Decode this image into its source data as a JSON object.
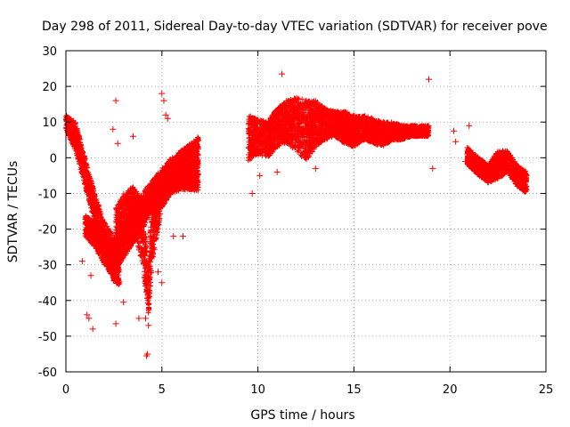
{
  "chart_data": {
    "type": "scatter",
    "title": "Day 298 of 2011, Sidereal Day-to-day VTEC variation (SDTVAR) for receiver pove",
    "xlabel": "GPS time / hours",
    "ylabel": "SDTVAR / TECUs",
    "xlim": [
      0,
      25
    ],
    "ylim": [
      -60,
      30
    ],
    "xticks": [
      0,
      5,
      10,
      15,
      20,
      25
    ],
    "xtick_labels": [
      "0",
      "5",
      "10",
      "15",
      "20",
      "25"
    ],
    "yticks": [
      -60,
      -50,
      -40,
      -30,
      -20,
      -10,
      0,
      10,
      20,
      30
    ],
    "ytick_labels": [
      "-60",
      "-50",
      "-40",
      "-30",
      "-20",
      "-10",
      "0",
      "10",
      "20",
      "30"
    ],
    "grid": true,
    "marker": "+",
    "series": [
      {
        "name": "pove",
        "color": "#ff0000",
        "bands": [
          {
            "x": [
              0.0,
              0.5,
              1.0,
              1.5,
              2.0,
              2.5,
              2.8
            ],
            "lo": [
              8,
              2,
              -8,
              -18,
              -28,
              -35,
              -36
            ],
            "hi": [
              12,
              10,
              0,
              -10,
              -18,
              -22,
              -24
            ]
          },
          {
            "x": [
              1.0,
              1.5,
              2.0,
              2.5,
              3.0,
              3.5,
              4.0,
              4.5,
              5.0,
              5.5,
              6.0,
              6.5,
              6.9
            ],
            "lo": [
              -22,
              -25,
              -30,
              -34,
              -28,
              -24,
              -20,
              -14,
              -12,
              -10,
              -8,
              -9,
              -10
            ],
            "hi": [
              -16,
              -18,
              -20,
              -24,
              -18,
              -14,
              -10,
              -6,
              -3,
              0,
              2,
              4,
              6
            ]
          },
          {
            "x": [
              2.6,
              3.0,
              3.5,
              4.0,
              4.3,
              4.5,
              5.0,
              5.5,
              6.0,
              6.5,
              6.9
            ],
            "lo": [
              -30,
              -22,
              -20,
              -30,
              -44,
              -30,
              -14,
              -10,
              -9,
              -9,
              -9
            ],
            "hi": [
              -14,
              -10,
              -8,
              -12,
              -30,
              -10,
              -4,
              -1,
              2,
              4,
              5
            ]
          },
          {
            "x": [
              9.5,
              10.0,
              10.5,
              11.0,
              11.5,
              12.0,
              12.5,
              13.0,
              13.5,
              14.0,
              14.5,
              15.0,
              15.5,
              16.0,
              16.5,
              17.0,
              17.5,
              18.0,
              18.5,
              18.9
            ],
            "lo": [
              -1,
              1,
              0,
              3,
              4,
              2,
              -1,
              3,
              5,
              6,
              4,
              3,
              5,
              4,
              3,
              5,
              5,
              6,
              6,
              6
            ],
            "hi": [
              12,
              11,
              10,
              14,
              16,
              17,
              16,
              16,
              14,
              13,
              13,
              12,
              12,
              11,
              10,
              10,
              9,
              9,
              9,
              9
            ]
          },
          {
            "x": [
              20.9,
              21.5,
              22.0,
              22.5,
              23.0,
              23.5,
              24.0
            ],
            "lo": [
              -2,
              -5,
              -7,
              -6,
              -4,
              -8,
              -10
            ],
            "hi": [
              3,
              0,
              -2,
              2,
              2,
              -2,
              -4
            ]
          }
        ],
        "outliers": [
          {
            "x": 2.45,
            "y": 8
          },
          {
            "x": 2.6,
            "y": 16
          },
          {
            "x": 2.7,
            "y": 4
          },
          {
            "x": 3.5,
            "y": 6
          },
          {
            "x": 5.0,
            "y": 18
          },
          {
            "x": 5.1,
            "y": 16
          },
          {
            "x": 5.2,
            "y": 12
          },
          {
            "x": 5.3,
            "y": 11
          },
          {
            "x": 4.25,
            "y": -55
          },
          {
            "x": 4.2,
            "y": -55.5
          },
          {
            "x": 4.3,
            "y": -47
          },
          {
            "x": 4.15,
            "y": -45
          },
          {
            "x": 1.1,
            "y": -44
          },
          {
            "x": 1.2,
            "y": -45
          },
          {
            "x": 1.4,
            "y": -48
          },
          {
            "x": 2.6,
            "y": -46.5
          },
          {
            "x": 3.0,
            "y": -40.5
          },
          {
            "x": 3.8,
            "y": -45
          },
          {
            "x": 5.0,
            "y": -35
          },
          {
            "x": 4.8,
            "y": -32
          },
          {
            "x": 0.85,
            "y": -29
          },
          {
            "x": 1.3,
            "y": -33
          },
          {
            "x": 6.1,
            "y": -22
          },
          {
            "x": 5.6,
            "y": -22
          },
          {
            "x": 9.7,
            "y": -10
          },
          {
            "x": 11.25,
            "y": 23.5
          },
          {
            "x": 10.1,
            "y": -5
          },
          {
            "x": 11.0,
            "y": -4
          },
          {
            "x": 13.0,
            "y": -3
          },
          {
            "x": 18.9,
            "y": 22
          },
          {
            "x": 19.1,
            "y": -3
          },
          {
            "x": 20.2,
            "y": 7.5
          },
          {
            "x": 20.3,
            "y": 4.5
          },
          {
            "x": 21.0,
            "y": 9
          },
          {
            "x": 20.8,
            "y": -1
          }
        ]
      }
    ]
  }
}
